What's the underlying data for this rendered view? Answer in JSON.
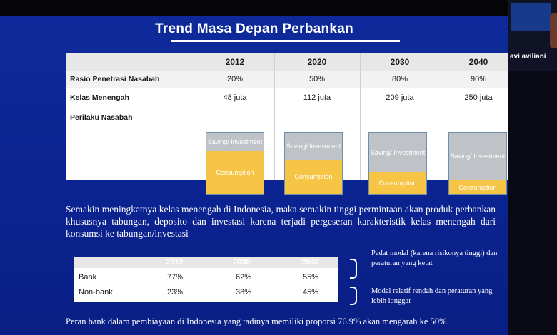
{
  "slide": {
    "title": "Trend Masa Depan Perbankan",
    "table1": {
      "years": [
        "2012",
        "2020",
        "2030",
        "2040"
      ],
      "rows": [
        {
          "label": "Rasio Penetrasi Nasabah",
          "values": [
            "20%",
            "50%",
            "80%",
            "90%"
          ]
        },
        {
          "label": "Kelas Menengah",
          "values": [
            "48 juta",
            "112 juta",
            "209 juta",
            "250 juta"
          ]
        },
        {
          "label": "Perilaku Nasabah"
        }
      ],
      "behavior": {
        "saving_label": "Saving/ Investment",
        "consumption_label": "Consumption",
        "saving_share": [
          0.3,
          0.45,
          0.65,
          0.78
        ]
      }
    },
    "paragraph": "Semakin meningkatnya kelas menengah di Indonesia, maka semakin tinggi permintaan akan produk perbankan khususnya tabungan, deposito dan investasi karena terjadi pergeseran karakteristik kelas menengah dari konsumsi ke tabungan/investasi",
    "table2": {
      "years": [
        "2012",
        "2030",
        "2040"
      ],
      "rows": [
        {
          "label": "Bank",
          "values": [
            "77%",
            "62%",
            "55%"
          ]
        },
        {
          "label": "Non-bank",
          "values": [
            "23%",
            "38%",
            "45%"
          ]
        }
      ]
    },
    "notes": {
      "bank": "Padat modal (karena risikonya tinggi) dan peraturan yang ketat",
      "nonbank": "Modal relatif rendah dan peraturan yang lebih longgar"
    },
    "bottom_text": "Peran bank dalam pembiayaan di Indonesia yang tadinya memiliki proporsi 76.9% akan mengarah ke 50%."
  },
  "video": {
    "participant_name": "avi aviliani"
  },
  "colors": {
    "slide_bg": "#0b2390",
    "consumption": "#f7c545",
    "saving": "#bfc3c8"
  }
}
